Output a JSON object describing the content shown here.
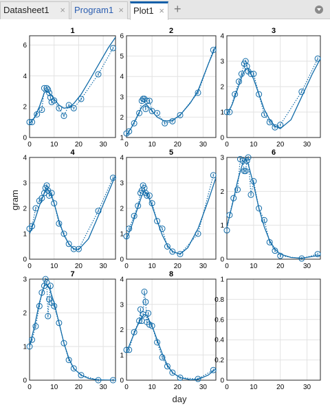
{
  "tabs": [
    {
      "label": "Datasheet1",
      "close": "×"
    },
    {
      "label": "Program1",
      "close": "×"
    },
    {
      "label": "Plot1",
      "close": "×"
    }
  ],
  "add_tab": "+",
  "icons": {
    "add": "plus-icon",
    "menu": "chevron-down-circle-icon",
    "close": "close-icon"
  },
  "colors": {
    "series": "#0f6aa8",
    "grid": "#e2e2e2"
  },
  "chart_data": {
    "type": "scatter",
    "xlabel": "day",
    "ylabel": "gram",
    "xlim": [
      0,
      35
    ],
    "x_ticks": [
      "0",
      "10",
      "20",
      "30"
    ],
    "grid": true,
    "panels": [
      {
        "title": "1",
        "ylim": [
          0,
          6.6
        ],
        "y_ticks": [
          "0",
          "2",
          "4",
          "6"
        ],
        "points": [
          [
            0,
            1
          ],
          [
            1,
            1
          ],
          [
            3,
            1.5
          ],
          [
            5,
            1.8
          ],
          [
            6,
            3.2
          ],
          [
            7,
            3.2
          ],
          [
            7.5,
            3.1
          ],
          [
            8,
            2.9
          ],
          [
            8.5,
            2.6
          ],
          [
            9,
            2.3
          ],
          [
            10,
            2.4
          ],
          [
            12,
            1.9
          ],
          [
            14,
            1.4
          ],
          [
            16,
            2.1
          ],
          [
            18,
            1.9
          ],
          [
            21,
            2.5
          ],
          [
            28,
            4.1
          ],
          [
            34,
            5.8
          ]
        ],
        "fit": [
          [
            0,
            0.9
          ],
          [
            2,
            1.3
          ],
          [
            4,
            2.0
          ],
          [
            6,
            2.9
          ],
          [
            7,
            3.0
          ],
          [
            8,
            2.9
          ],
          [
            10,
            2.5
          ],
          [
            12,
            2.1
          ],
          [
            14,
            1.9
          ],
          [
            16,
            1.95
          ],
          [
            18,
            2.2
          ],
          [
            21,
            2.8
          ],
          [
            24,
            3.6
          ],
          [
            28,
            4.7
          ],
          [
            32,
            5.8
          ],
          [
            35,
            6.5
          ]
        ]
      },
      {
        "title": "2",
        "ylim": [
          1,
          6
        ],
        "y_ticks": [
          "1",
          "2",
          "3",
          "4",
          "5",
          "6"
        ],
        "points": [
          [
            0,
            1.2
          ],
          [
            1,
            1.3
          ],
          [
            3,
            1.7
          ],
          [
            5,
            2.2
          ],
          [
            6,
            2.8
          ],
          [
            6.5,
            2.9
          ],
          [
            7,
            2.9
          ],
          [
            7.5,
            2.4
          ],
          [
            8,
            2.8
          ],
          [
            9,
            2.8
          ],
          [
            10,
            2.3
          ],
          [
            12,
            2.2
          ],
          [
            15,
            1.7
          ],
          [
            18,
            1.8
          ],
          [
            21,
            2.1
          ],
          [
            28,
            3.2
          ],
          [
            34,
            5.3
          ]
        ],
        "fit": [
          [
            0,
            1.1
          ],
          [
            2,
            1.5
          ],
          [
            4,
            2.0
          ],
          [
            6,
            2.5
          ],
          [
            7,
            2.6
          ],
          [
            8,
            2.6
          ],
          [
            10,
            2.3
          ],
          [
            12,
            2.0
          ],
          [
            15,
            1.8
          ],
          [
            18,
            1.85
          ],
          [
            21,
            2.1
          ],
          [
            25,
            2.7
          ],
          [
            28,
            3.3
          ],
          [
            32,
            4.6
          ],
          [
            35,
            5.5
          ]
        ]
      },
      {
        "title": "3",
        "ylim": [
          0,
          4
        ],
        "y_ticks": [
          "0",
          "1",
          "2",
          "3",
          "4"
        ],
        "points": [
          [
            0,
            1
          ],
          [
            1,
            1
          ],
          [
            3,
            1.7
          ],
          [
            4.5,
            2.2
          ],
          [
            5.5,
            2.5
          ],
          [
            6.5,
            2.9
          ],
          [
            7,
            3
          ],
          [
            7.5,
            2.8
          ],
          [
            8,
            2.6
          ],
          [
            9,
            2.5
          ],
          [
            10,
            2.5
          ],
          [
            12,
            1.7
          ],
          [
            14,
            0.9
          ],
          [
            16,
            0.6
          ],
          [
            18,
            0.4
          ],
          [
            20,
            0.5
          ],
          [
            28,
            1.8
          ],
          [
            34,
            3.1
          ]
        ],
        "fit": [
          [
            0,
            0.9
          ],
          [
            2,
            1.3
          ],
          [
            4,
            1.9
          ],
          [
            6,
            2.5
          ],
          [
            7,
            2.7
          ],
          [
            8,
            2.7
          ],
          [
            10,
            2.3
          ],
          [
            12,
            1.7
          ],
          [
            14,
            1.1
          ],
          [
            16,
            0.7
          ],
          [
            18,
            0.45
          ],
          [
            20,
            0.35
          ],
          [
            24,
            0.7
          ],
          [
            28,
            1.6
          ],
          [
            32,
            2.5
          ],
          [
            35,
            3.1
          ]
        ]
      },
      {
        "title": "4",
        "ylim": [
          0,
          4
        ],
        "y_ticks": [
          "0",
          "1",
          "2",
          "3",
          "4"
        ],
        "points": [
          [
            0,
            1.2
          ],
          [
            1,
            1.3
          ],
          [
            2.5,
            2.0
          ],
          [
            4,
            2.3
          ],
          [
            5,
            2.4
          ],
          [
            6,
            2.6
          ],
          [
            6.5,
            2.8
          ],
          [
            7,
            2.9
          ],
          [
            7.5,
            2.7
          ],
          [
            8,
            2.5
          ],
          [
            9,
            2.6
          ],
          [
            10,
            2.2
          ],
          [
            12,
            1.4
          ],
          [
            14,
            1.0
          ],
          [
            16,
            0.6
          ],
          [
            18,
            0.4
          ],
          [
            20,
            0.4
          ],
          [
            28,
            1.9
          ],
          [
            34,
            3.2
          ]
        ],
        "fit": [
          [
            0,
            1.0
          ],
          [
            2,
            1.5
          ],
          [
            4,
            2.1
          ],
          [
            6,
            2.6
          ],
          [
            7,
            2.75
          ],
          [
            8,
            2.7
          ],
          [
            10,
            2.2
          ],
          [
            12,
            1.5
          ],
          [
            14,
            0.95
          ],
          [
            16,
            0.6
          ],
          [
            18,
            0.4
          ],
          [
            20,
            0.38
          ],
          [
            24,
            0.8
          ],
          [
            28,
            1.7
          ],
          [
            32,
            2.6
          ],
          [
            35,
            3.3
          ]
        ]
      },
      {
        "title": "5",
        "ylim": [
          0,
          4
        ],
        "y_ticks": [
          "0",
          "1",
          "2",
          "3",
          "4"
        ],
        "points": [
          [
            0,
            0.9
          ],
          [
            1,
            1.2
          ],
          [
            3,
            1.7
          ],
          [
            4.5,
            2.1
          ],
          [
            5.5,
            2.6
          ],
          [
            6,
            2.7
          ],
          [
            6.5,
            2.9
          ],
          [
            7,
            2.8
          ],
          [
            7.5,
            2.6
          ],
          [
            8,
            2.5
          ],
          [
            9,
            2.5
          ],
          [
            10,
            2.2
          ],
          [
            12,
            1.5
          ],
          [
            14,
            1.2
          ],
          [
            16,
            0.5
          ],
          [
            18,
            0.3
          ],
          [
            21,
            0.2
          ],
          [
            28,
            1.0
          ],
          [
            34,
            3.3
          ]
        ],
        "fit": [
          [
            0,
            0.8
          ],
          [
            2,
            1.3
          ],
          [
            4,
            1.9
          ],
          [
            6,
            2.5
          ],
          [
            7,
            2.65
          ],
          [
            8,
            2.6
          ],
          [
            10,
            2.1
          ],
          [
            12,
            1.5
          ],
          [
            14,
            0.95
          ],
          [
            16,
            0.55
          ],
          [
            18,
            0.3
          ],
          [
            21,
            0.2
          ],
          [
            24,
            0.45
          ],
          [
            28,
            1.2
          ],
          [
            32,
            2.3
          ],
          [
            35,
            3.2
          ]
        ]
      },
      {
        "title": "6",
        "ylim": [
          0,
          3
        ],
        "y_ticks": [
          "0",
          "1",
          "2",
          "3"
        ],
        "points": [
          [
            0,
            0.85
          ],
          [
            1,
            1.3
          ],
          [
            2.5,
            1.8
          ],
          [
            4,
            2.05
          ],
          [
            5,
            2.95
          ],
          [
            6,
            2.9
          ],
          [
            6.5,
            2.6
          ],
          [
            7,
            2.6
          ],
          [
            7.5,
            2.9
          ],
          [
            8,
            3.0
          ],
          [
            9,
            1.9
          ],
          [
            10,
            2.3
          ],
          [
            12,
            1.5
          ],
          [
            14,
            1.15
          ],
          [
            16,
            0.5
          ],
          [
            18,
            0.25
          ],
          [
            20,
            0.1
          ],
          [
            28,
            0.02
          ],
          [
            34,
            0.15
          ]
        ],
        "fit": [
          [
            0,
            0.95
          ],
          [
            2,
            1.6
          ],
          [
            4,
            2.3
          ],
          [
            6,
            2.85
          ],
          [
            7,
            2.95
          ],
          [
            8,
            2.8
          ],
          [
            10,
            2.2
          ],
          [
            12,
            1.5
          ],
          [
            14,
            0.95
          ],
          [
            16,
            0.55
          ],
          [
            18,
            0.3
          ],
          [
            20,
            0.15
          ],
          [
            24,
            0.05
          ],
          [
            28,
            0.03
          ],
          [
            32,
            0.08
          ],
          [
            35,
            0.12
          ]
        ]
      },
      {
        "title": "7",
        "ylim": [
          0,
          3
        ],
        "y_ticks": [
          "0",
          "1",
          "2",
          "3"
        ],
        "points": [
          [
            0,
            1.0
          ],
          [
            1,
            1.2
          ],
          [
            2.5,
            1.6
          ],
          [
            4,
            2.2
          ],
          [
            5,
            2.6
          ],
          [
            6,
            2.8
          ],
          [
            6.5,
            3.0
          ],
          [
            7,
            2.9
          ],
          [
            7.5,
            1.9
          ],
          [
            8,
            2.4
          ],
          [
            8.5,
            2.8
          ],
          [
            9,
            2.3
          ],
          [
            10,
            2.2
          ],
          [
            12,
            1.7
          ],
          [
            14,
            1.1
          ],
          [
            16,
            0.6
          ],
          [
            18,
            0.35
          ],
          [
            21,
            0.15
          ],
          [
            28,
            0.0
          ],
          [
            34,
            0.0
          ]
        ],
        "fit": [
          [
            0,
            1.0
          ],
          [
            2,
            1.6
          ],
          [
            4,
            2.3
          ],
          [
            6,
            2.8
          ],
          [
            7,
            2.85
          ],
          [
            8,
            2.75
          ],
          [
            10,
            2.3
          ],
          [
            12,
            1.7
          ],
          [
            14,
            1.1
          ],
          [
            16,
            0.65
          ],
          [
            18,
            0.35
          ],
          [
            21,
            0.15
          ],
          [
            24,
            0.05
          ],
          [
            28,
            0.01
          ],
          [
            35,
            0.0
          ]
        ]
      },
      {
        "title": "8",
        "ylim": [
          0,
          4
        ],
        "y_ticks": [
          "0",
          "1",
          "2",
          "3",
          "4"
        ],
        "points": [
          [
            0,
            1.2
          ],
          [
            1,
            1.2
          ],
          [
            3,
            1.9
          ],
          [
            5,
            2.35
          ],
          [
            5.5,
            2.8
          ],
          [
            6,
            2.35
          ],
          [
            6.5,
            2.6
          ],
          [
            7,
            3.5
          ],
          [
            7.5,
            3.1
          ],
          [
            8,
            2.3
          ],
          [
            8.5,
            2.65
          ],
          [
            9,
            2.2
          ],
          [
            10,
            2.15
          ],
          [
            12,
            1.5
          ],
          [
            14,
            0.9
          ],
          [
            16,
            0.55
          ],
          [
            18,
            0.3
          ],
          [
            21,
            0.1
          ],
          [
            28,
            0.05
          ],
          [
            34,
            0.4
          ]
        ],
        "fit": [
          [
            0,
            1.1
          ],
          [
            2,
            1.6
          ],
          [
            4,
            2.1
          ],
          [
            6,
            2.5
          ],
          [
            7,
            2.6
          ],
          [
            8,
            2.55
          ],
          [
            10,
            2.15
          ],
          [
            12,
            1.6
          ],
          [
            14,
            1.05
          ],
          [
            16,
            0.6
          ],
          [
            18,
            0.3
          ],
          [
            21,
            0.1
          ],
          [
            25,
            0.02
          ],
          [
            28,
            0.03
          ],
          [
            32,
            0.2
          ],
          [
            35,
            0.45
          ]
        ]
      },
      {
        "title": "",
        "ylim": [
          0,
          1
        ],
        "y_ticks": [
          "0",
          "0.2",
          "0.4",
          "0.6",
          "0.8",
          "1"
        ],
        "points": [],
        "fit": []
      }
    ]
  }
}
